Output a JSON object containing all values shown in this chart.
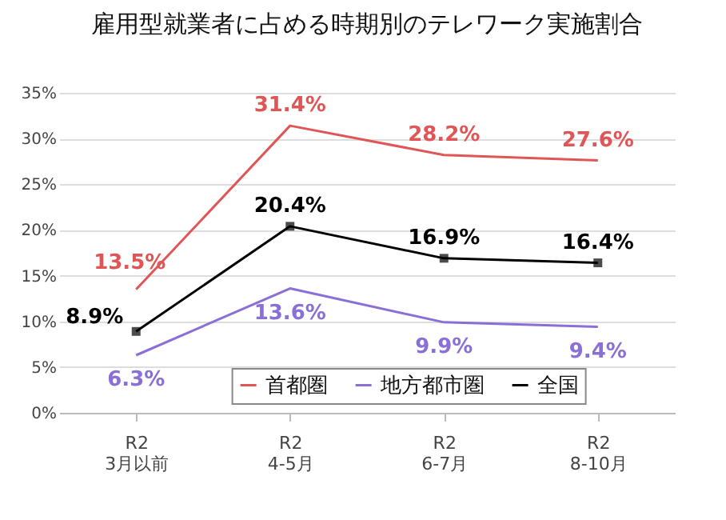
{
  "chart_data": {
    "type": "line",
    "title": "雇用型就業者に占める時期別のテレワーク実施割合",
    "categories": [
      "R2\n3月以前",
      "R2\n4-5月",
      "R2\n6-7月",
      "R2\n8-10月"
    ],
    "series": [
      {
        "name": "首都圏",
        "color": "#e05555",
        "values": [
          13.5,
          31.4,
          28.2,
          27.6
        ],
        "value_labels": [
          "13.5%",
          "31.4%",
          "28.2%",
          "27.6%"
        ]
      },
      {
        "name": "地方都市圏",
        "color": "#8a6fd6",
        "values": [
          6.3,
          13.6,
          9.9,
          9.4
        ],
        "value_labels": [
          "6.3%",
          "13.6%",
          "9.9%",
          "9.4%"
        ]
      },
      {
        "name": "全国",
        "color": "#000000",
        "values": [
          8.9,
          20.4,
          16.9,
          16.4
        ],
        "marker": "square",
        "value_labels": [
          "8.9%",
          "20.4%",
          "16.9%",
          "16.4%"
        ]
      }
    ],
    "ylim": [
      0,
      35
    ],
    "yticks": [
      {
        "value": 0,
        "label": "0%"
      },
      {
        "value": 5,
        "label": "5%"
      },
      {
        "value": 10,
        "label": "10%"
      },
      {
        "value": 15,
        "label": "15%"
      },
      {
        "value": 20,
        "label": "20%"
      },
      {
        "value": 25,
        "label": "25%"
      },
      {
        "value": 30,
        "label": "30%"
      },
      {
        "value": 35,
        "label": "35%"
      }
    ],
    "grid": "y",
    "legend": "bottom",
    "marker": "none"
  }
}
